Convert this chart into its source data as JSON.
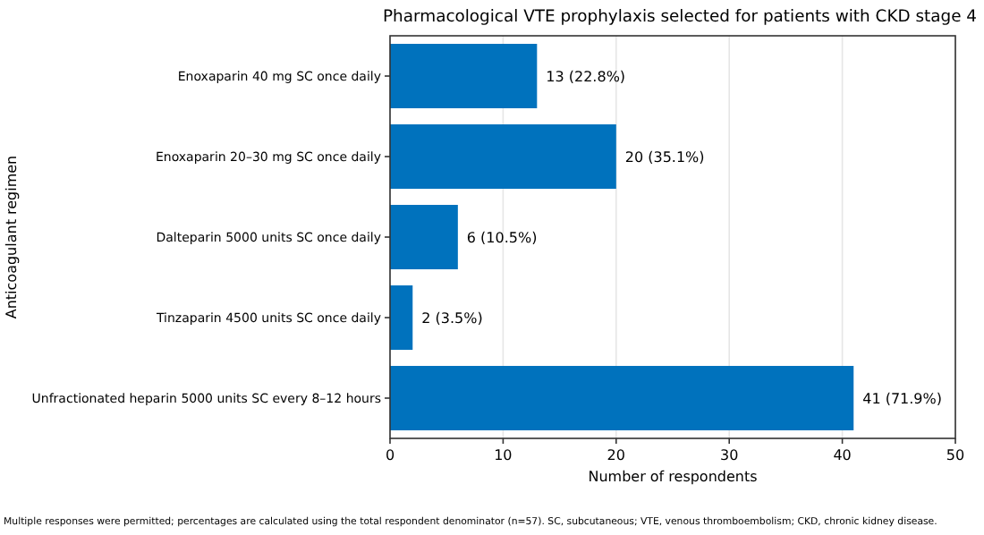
{
  "chart_data": {
    "type": "bar",
    "orientation": "horizontal",
    "title": "Pharmacological VTE prophylaxis selected for patients with CKD stage 4",
    "xlabel": "Number of respondents",
    "ylabel": "Anticoagulant regimen",
    "categories": [
      "Enoxaparin 40 mg SC once daily",
      "Enoxaparin 20–30 mg SC once daily",
      "Dalteparin 5000 units SC once daily",
      "Tinzaparin 4500 units SC once daily",
      "Unfractionated heparin 5000 units SC every 8–12 hours"
    ],
    "values": [
      13,
      20,
      6,
      2,
      41
    ],
    "value_labels": [
      "13 (22.8%)",
      "20 (35.1%)",
      "6 (10.5%)",
      "2 (3.5%)",
      "41 (71.9%)"
    ],
    "color": "#0072bd",
    "xlim": [
      0,
      50
    ],
    "xticks": [
      0,
      10,
      20,
      30,
      40,
      50
    ],
    "grid": "x",
    "annotations": [
      "Multiple responses were permitted; percentages are calculated using the total respondent denominator (n=57). SC, subcutaneous; VTE, venous thromboembolism; CKD, chronic kidney disease."
    ]
  }
}
